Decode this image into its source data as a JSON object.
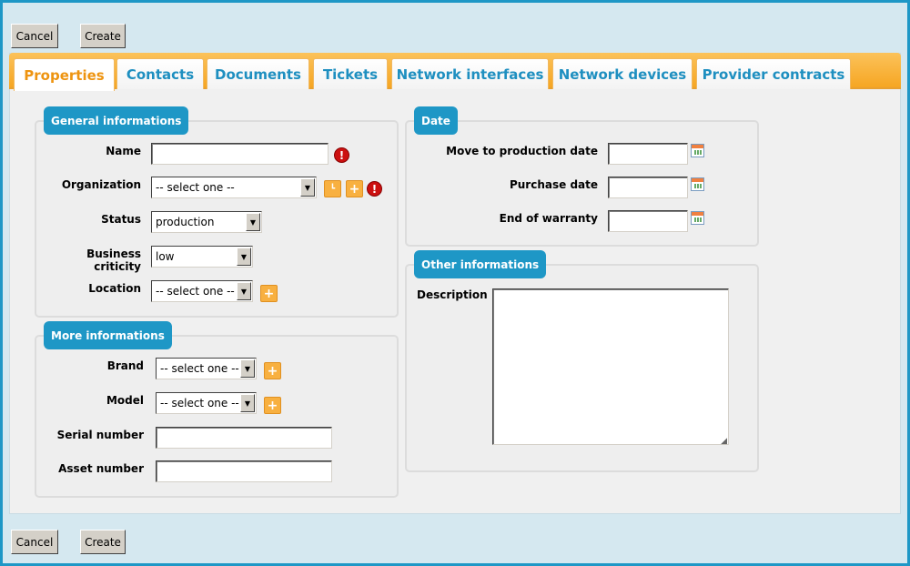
{
  "toolbar": {
    "cancel": "Cancel",
    "create": "Create"
  },
  "tabs": [
    {
      "label": "Properties",
      "active": true
    },
    {
      "label": "Contacts"
    },
    {
      "label": "Documents"
    },
    {
      "label": "Tickets"
    },
    {
      "label": "Network interfaces"
    },
    {
      "label": "Network devices"
    },
    {
      "label": "Provider contracts"
    }
  ],
  "general": {
    "legend": "General informations",
    "name_label": "Name",
    "name_value": "",
    "organization_label": "Organization",
    "organization_value": "-- select one --",
    "status_label": "Status",
    "status_value": "production",
    "criticity_label": "Business criticity",
    "criticity_value": "low",
    "location_label": "Location",
    "location_value": "-- select one --"
  },
  "more": {
    "legend": "More informations",
    "brand_label": "Brand",
    "brand_value": "-- select one --",
    "model_label": "Model",
    "model_value": "-- select one --",
    "serial_label": "Serial number",
    "serial_value": "",
    "asset_label": "Asset number",
    "asset_value": ""
  },
  "date": {
    "legend": "Date",
    "production_label": "Move to production date",
    "purchase_label": "Purchase date",
    "warranty_label": "End of warranty"
  },
  "other": {
    "legend": "Other informations",
    "description_label": "Description",
    "description_value": ""
  },
  "colors": {
    "accent": "#1e97c6",
    "tab_bar": "#f6a623",
    "active_tab": "#ee9410",
    "error": "#cc1010"
  }
}
